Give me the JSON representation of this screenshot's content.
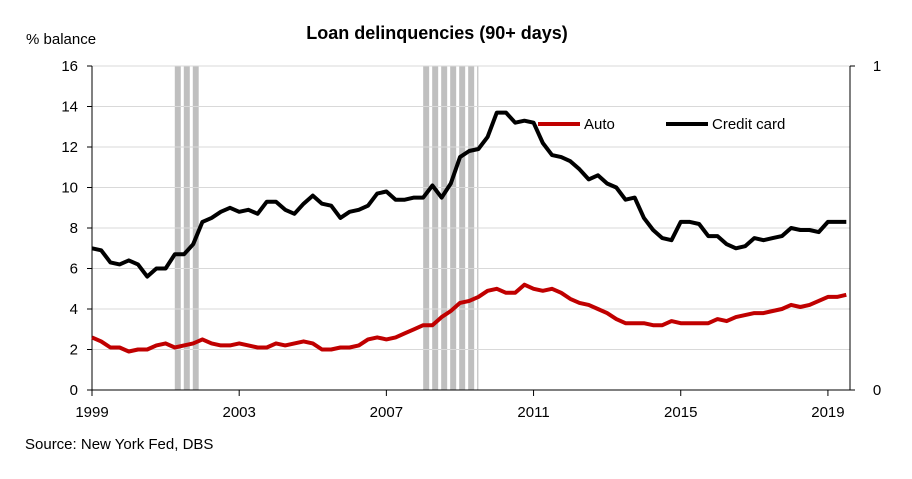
{
  "chart_data": {
    "type": "line",
    "title": "Loan delinquencies (90+ days)",
    "ylabel": "% balance",
    "ylim": [
      0,
      16
    ],
    "y2lim": [
      0,
      1
    ],
    "xlim": [
      1999,
      2019.6
    ],
    "x_ticks": [
      1999,
      2003,
      2007,
      2011,
      2015,
      2019
    ],
    "y_ticks": [
      0,
      2,
      4,
      6,
      8,
      10,
      12,
      14,
      16
    ],
    "y2_ticks": [
      0,
      1
    ],
    "grid": true,
    "legend": "top-right",
    "recession_bands": [
      {
        "start": 2001.25,
        "end": 2001.9
      },
      {
        "start": 2008.0,
        "end": 2009.5
      }
    ],
    "series": [
      {
        "name": "Auto",
        "color": "#c00000",
        "x": [
          1999.0,
          1999.25,
          1999.5,
          1999.75,
          2000.0,
          2000.25,
          2000.5,
          2000.75,
          2001.0,
          2001.25,
          2001.5,
          2001.75,
          2002.0,
          2002.25,
          2002.5,
          2002.75,
          2003.0,
          2003.25,
          2003.5,
          2003.75,
          2004.0,
          2004.25,
          2004.5,
          2004.75,
          2005.0,
          2005.25,
          2005.5,
          2005.75,
          2006.0,
          2006.25,
          2006.5,
          2006.75,
          2007.0,
          2007.25,
          2007.5,
          2007.75,
          2008.0,
          2008.25,
          2008.5,
          2008.75,
          2009.0,
          2009.25,
          2009.5,
          2009.75,
          2010.0,
          2010.25,
          2010.5,
          2010.75,
          2011.0,
          2011.25,
          2011.5,
          2011.75,
          2012.0,
          2012.25,
          2012.5,
          2012.75,
          2013.0,
          2013.25,
          2013.5,
          2013.75,
          2014.0,
          2014.25,
          2014.5,
          2014.75,
          2015.0,
          2015.25,
          2015.5,
          2015.75,
          2016.0,
          2016.25,
          2016.5,
          2016.75,
          2017.0,
          2017.25,
          2017.5,
          2017.75,
          2018.0,
          2018.25,
          2018.5,
          2018.75,
          2019.0,
          2019.25,
          2019.5
        ],
        "values": [
          2.6,
          2.4,
          2.1,
          2.1,
          1.9,
          2.0,
          2.0,
          2.2,
          2.3,
          2.1,
          2.2,
          2.3,
          2.5,
          2.3,
          2.2,
          2.2,
          2.3,
          2.2,
          2.1,
          2.1,
          2.3,
          2.2,
          2.3,
          2.4,
          2.3,
          2.0,
          2.0,
          2.1,
          2.1,
          2.2,
          2.5,
          2.6,
          2.5,
          2.6,
          2.8,
          3.0,
          3.2,
          3.2,
          3.6,
          3.9,
          4.3,
          4.4,
          4.6,
          4.9,
          5.0,
          4.8,
          4.8,
          5.2,
          5.0,
          4.9,
          5.0,
          4.8,
          4.5,
          4.3,
          4.2,
          4.0,
          3.8,
          3.5,
          3.3,
          3.3,
          3.3,
          3.2,
          3.2,
          3.4,
          3.3,
          3.3,
          3.3,
          3.3,
          3.5,
          3.4,
          3.6,
          3.7,
          3.8,
          3.8,
          3.9,
          4.0,
          4.2,
          4.1,
          4.2,
          4.4,
          4.6,
          4.6,
          4.7
        ]
      },
      {
        "name": "Credit card",
        "color": "#000000",
        "x": [
          1999.0,
          1999.25,
          1999.5,
          1999.75,
          2000.0,
          2000.25,
          2000.5,
          2000.75,
          2001.0,
          2001.25,
          2001.5,
          2001.75,
          2002.0,
          2002.25,
          2002.5,
          2002.75,
          2003.0,
          2003.25,
          2003.5,
          2003.75,
          2004.0,
          2004.25,
          2004.5,
          2004.75,
          2005.0,
          2005.25,
          2005.5,
          2005.75,
          2006.0,
          2006.25,
          2006.5,
          2006.75,
          2007.0,
          2007.25,
          2007.5,
          2007.75,
          2008.0,
          2008.25,
          2008.5,
          2008.75,
          2009.0,
          2009.25,
          2009.5,
          2009.75,
          2010.0,
          2010.25,
          2010.5,
          2010.75,
          2011.0,
          2011.25,
          2011.5,
          2011.75,
          2012.0,
          2012.25,
          2012.5,
          2012.75,
          2013.0,
          2013.25,
          2013.5,
          2013.75,
          2014.0,
          2014.25,
          2014.5,
          2014.75,
          2015.0,
          2015.25,
          2015.5,
          2015.75,
          2016.0,
          2016.25,
          2016.5,
          2016.75,
          2017.0,
          2017.25,
          2017.5,
          2017.75,
          2018.0,
          2018.25,
          2018.5,
          2018.75,
          2019.0,
          2019.25,
          2019.5
        ],
        "values": [
          7.0,
          6.9,
          6.3,
          6.2,
          6.4,
          6.2,
          5.6,
          6.0,
          6.0,
          6.7,
          6.7,
          7.2,
          8.3,
          8.5,
          8.8,
          9.0,
          8.8,
          8.9,
          8.7,
          9.3,
          9.3,
          8.9,
          8.7,
          9.2,
          9.6,
          9.2,
          9.1,
          8.5,
          8.8,
          8.9,
          9.1,
          9.7,
          9.8,
          9.4,
          9.4,
          9.5,
          9.5,
          10.1,
          9.5,
          10.2,
          11.5,
          11.8,
          11.9,
          12.5,
          13.7,
          13.7,
          13.2,
          13.3,
          13.2,
          12.2,
          11.6,
          11.5,
          11.3,
          10.9,
          10.4,
          10.6,
          10.2,
          10.0,
          9.4,
          9.5,
          8.5,
          7.9,
          7.5,
          7.4,
          8.3,
          8.3,
          8.2,
          7.6,
          7.6,
          7.2,
          7.0,
          7.1,
          7.5,
          7.4,
          7.5,
          7.6,
          8.0,
          7.9,
          7.9,
          7.8,
          8.3,
          8.3,
          8.3
        ]
      }
    ]
  },
  "source": "Source: New York Fed, DBS"
}
